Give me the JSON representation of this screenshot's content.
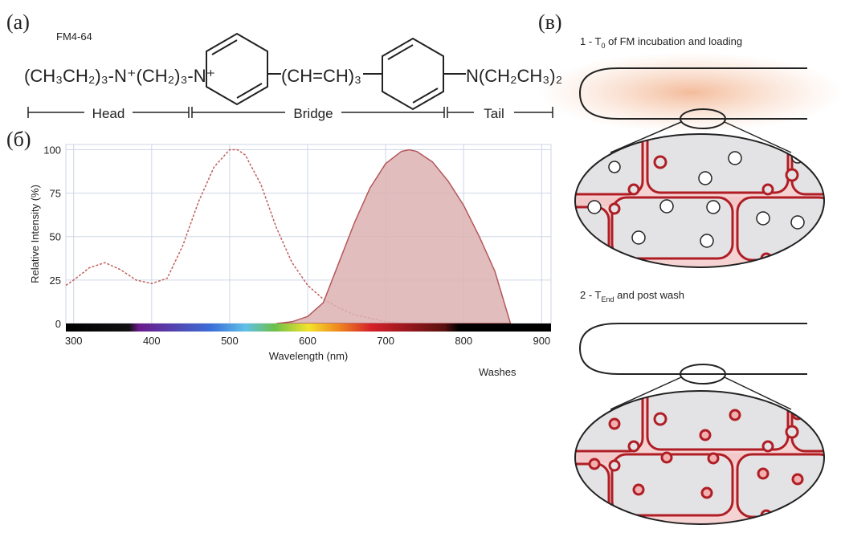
{
  "panel_labels": [
    "(а)",
    "(б)",
    "(в)"
  ],
  "structure": {
    "name": "FM4-64",
    "left": "(CH₃CH₂)₃-N⁺(CH₂)₃-N⁺",
    "bridge": "(CH=CH)₃",
    "right": "N(CH₂CH₃)₂",
    "head": "Head",
    "bridge_label": "Bridge",
    "tail": "Tail"
  },
  "chart_data": {
    "type": "line",
    "ylabel": "Relative Intensity (%)",
    "xlabel": "Wavelength (nm)",
    "annotation": "Washes",
    "xlim": [
      290,
      912
    ],
    "ylim": [
      0,
      103
    ],
    "xticks": [
      300,
      400,
      500,
      600,
      700,
      800,
      900
    ],
    "yticks": [
      0,
      25,
      50,
      75,
      100
    ],
    "grid": true,
    "series": [
      {
        "color": "#c0605f",
        "dashed": true,
        "fill": false,
        "x": [
          290,
          300,
          320,
          340,
          360,
          380,
          400,
          420,
          440,
          460,
          480,
          500,
          510,
          520,
          540,
          560,
          580,
          600,
          620,
          640,
          660,
          680,
          700,
          720
        ],
        "values": [
          22,
          25,
          32,
          35,
          31,
          25,
          23,
          26,
          45,
          70,
          90,
          100,
          100,
          97,
          80,
          55,
          35,
          22,
          14,
          9,
          5,
          3,
          1,
          0
        ]
      },
      {
        "color": "#b5585b",
        "fill_color": "#dcb2b3",
        "dashed": false,
        "fill": true,
        "x": [
          560,
          580,
          600,
          620,
          640,
          660,
          680,
          700,
          720,
          730,
          740,
          760,
          780,
          800,
          820,
          840,
          850,
          860
        ],
        "values": [
          0,
          1,
          4,
          12,
          35,
          58,
          78,
          92,
          99,
          100,
          99,
          93,
          82,
          68,
          50,
          30,
          15,
          0
        ]
      }
    ]
  },
  "schematic": {
    "step1": {
      "prefix": "1 - T",
      "sub": "0",
      "rest": " of FM incubation and loading"
    },
    "step2": {
      "prefix": "2 - T",
      "sub": "End",
      "rest": " and post wash"
    }
  }
}
